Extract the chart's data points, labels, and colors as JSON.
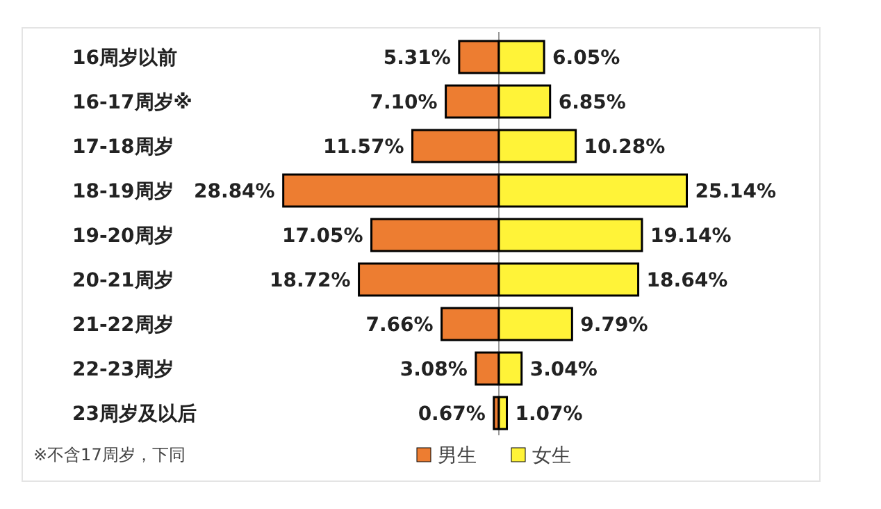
{
  "chart_data": [
    {
      "type": "bar",
      "orientation": "horizontal",
      "categories": [
        "16周岁以前",
        "16-17周岁※",
        "17-18周岁",
        "18-19周岁",
        "19-20周岁",
        "20-21周岁",
        "21-22周岁",
        "22-23周岁",
        "23周岁及以后"
      ],
      "series": [
        {
          "name": "男生",
          "color": "#ed7d31",
          "values": [
            5.31,
            7.1,
            11.57,
            28.84,
            17.05,
            18.72,
            7.66,
            3.08,
            0.67
          ],
          "value_labels": [
            "5.31%",
            "7.10%",
            "11.57%",
            "28.84%",
            "17.05%",
            "18.72%",
            "7.66%",
            "3.08%",
            "0.67%"
          ]
        }
      ],
      "annotations": [
        "※不含17周岁，下同"
      ],
      "legend": "bottom"
    },
    {
      "type": "bar",
      "orientation": "horizontal",
      "categories": [
        null,
        null,
        null,
        null,
        null,
        null,
        null,
        null,
        null
      ],
      "series": [
        {
          "name": "女生",
          "color": "#fff338",
          "values": [
            6.05,
            6.85,
            10.28,
            25.14,
            19.14,
            18.64,
            9.79,
            3.04,
            1.07
          ],
          "value_labels": [
            "6.05%",
            "6.85%",
            "10.28%",
            "25.14%",
            "19.14%",
            "18.64%",
            "9.79%",
            "3.04%",
            "1.07%"
          ]
        }
      ],
      "legend": "bottom"
    }
  ]
}
